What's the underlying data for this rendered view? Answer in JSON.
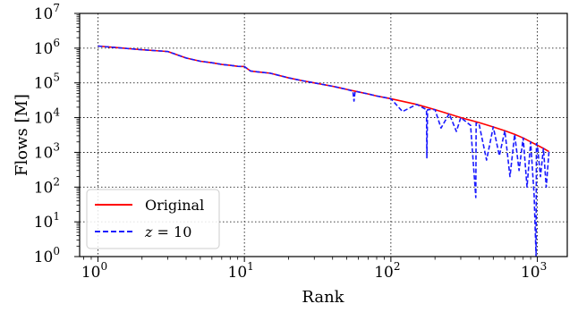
{
  "chart_data": {
    "type": "line",
    "xlabel": "Rank",
    "ylabel": "Flows [M]",
    "xscale": "log",
    "yscale": "log",
    "xlim": [
      0.75,
      1600
    ],
    "ylim": [
      1,
      10000000
    ],
    "grid": "dotted",
    "legend_placement": "lower-left",
    "x_ticks": [
      {
        "base": "10",
        "exp": "0"
      },
      {
        "base": "10",
        "exp": "1"
      },
      {
        "base": "10",
        "exp": "2"
      },
      {
        "base": "10",
        "exp": "3"
      }
    ],
    "y_ticks": [
      {
        "base": "10",
        "exp": "0"
      },
      {
        "base": "10",
        "exp": "1"
      },
      {
        "base": "10",
        "exp": "2"
      },
      {
        "base": "10",
        "exp": "3"
      },
      {
        "base": "10",
        "exp": "4"
      },
      {
        "base": "10",
        "exp": "5"
      },
      {
        "base": "10",
        "exp": "6"
      },
      {
        "base": "10",
        "exp": "7"
      }
    ],
    "series": [
      {
        "name": "Original",
        "color": "#ff0000",
        "style": "solid",
        "x": [
          1,
          2,
          3,
          4,
          5,
          6,
          7,
          8,
          9,
          10,
          11,
          12,
          15,
          20,
          25,
          30,
          40,
          50,
          60,
          70,
          80,
          100,
          150,
          200,
          300,
          400,
          500,
          600,
          700,
          800,
          900,
          1000,
          1100,
          1200
        ],
        "y": [
          1150000,
          900000,
          800000,
          520000,
          420000,
          380000,
          340000,
          320000,
          300000,
          295000,
          220000,
          210000,
          190000,
          140000,
          115000,
          100000,
          80000,
          65000,
          55000,
          48000,
          42000,
          35000,
          24000,
          17000,
          10000,
          7200,
          5400,
          4200,
          3300,
          2600,
          2000,
          1600,
          1300,
          1050
        ]
      },
      {
        "name": "z = 10",
        "name_display": "z = 10",
        "color": "#1a1aff",
        "style": "dashed",
        "x": [
          1,
          2,
          3,
          4,
          5,
          6,
          7,
          8,
          9,
          10,
          11,
          12,
          15,
          20,
          25,
          30,
          40,
          50,
          55,
          56,
          57,
          60,
          70,
          80,
          100,
          120,
          150,
          175,
          176,
          178,
          200,
          220,
          250,
          280,
          300,
          350,
          380,
          382,
          400,
          450,
          500,
          550,
          600,
          650,
          700,
          750,
          800,
          850,
          900,
          950,
          980,
          985,
          1000,
          1050,
          1100,
          1150,
          1200
        ],
        "y": [
          1150000,
          900000,
          800000,
          520000,
          420000,
          380000,
          340000,
          320000,
          300000,
          295000,
          220000,
          210000,
          190000,
          140000,
          115000,
          100000,
          80000,
          65000,
          58000,
          30000,
          58000,
          55000,
          48000,
          42000,
          35000,
          15000,
          24000,
          17000,
          700,
          17000,
          17000,
          5000,
          13000,
          4000,
          10000,
          6000,
          50,
          7000,
          6500,
          600,
          5400,
          800,
          4200,
          200,
          3300,
          300,
          2600,
          100,
          2000,
          60,
          1,
          1800,
          1600,
          200,
          1300,
          100,
          1050
        ]
      }
    ]
  },
  "legend": {
    "original_label": "Original",
    "z_label_var": "z",
    "z_label_rest": " = 10"
  }
}
